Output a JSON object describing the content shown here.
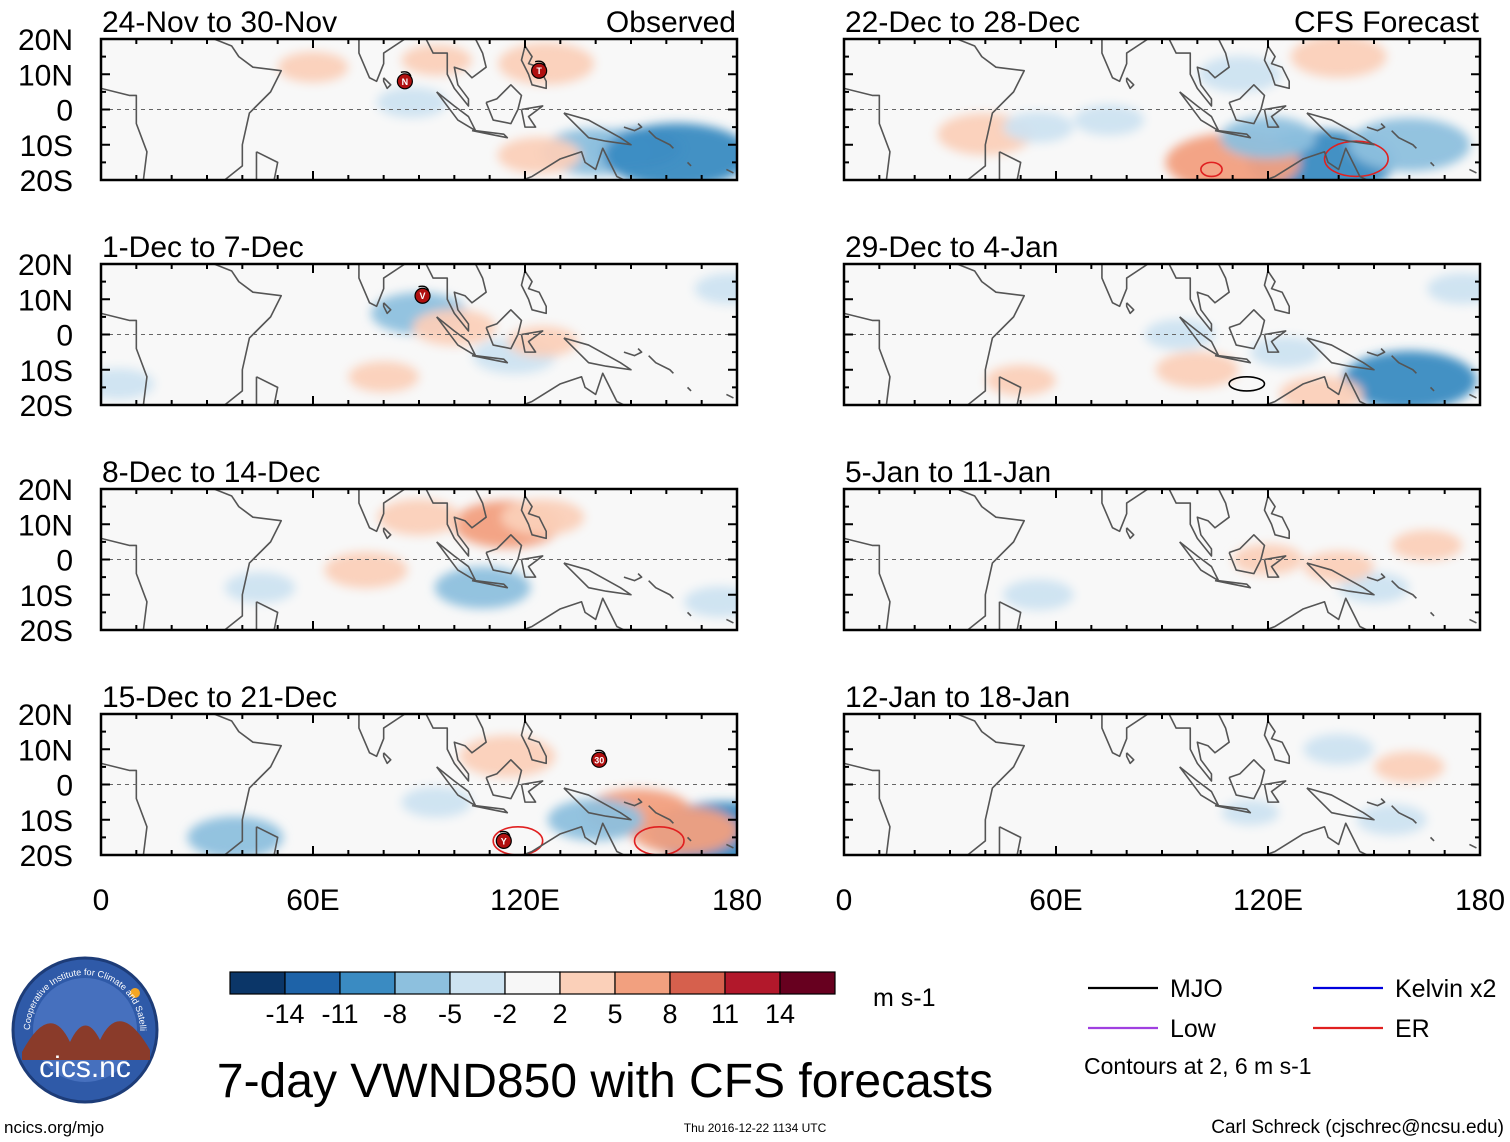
{
  "chart_data": {
    "type": "heatmap",
    "title": "7-day VWND850 with CFS forecasts",
    "units": "m s-1",
    "column_headers": [
      "Observed",
      "CFS Forecast"
    ],
    "panels": [
      {
        "period": "24-Nov to 30-Nov",
        "source": "Observed",
        "storms": [
          {
            "lon": 86,
            "lat": 8,
            "label": "N"
          },
          {
            "lon": 124,
            "lat": 11,
            "label": "T"
          }
        ],
        "contours": [],
        "anomalies": [
          {
            "lon": 140,
            "lat": -12,
            "v": -6
          },
          {
            "lon": 151,
            "lat": -11,
            "v": -5
          },
          {
            "lon": 163,
            "lat": -13,
            "v": -9
          },
          {
            "lon": 126,
            "lat": 13,
            "v": 5
          },
          {
            "lon": 124,
            "lat": -13,
            "v": 4
          },
          {
            "lon": 88,
            "lat": 2,
            "v": -3
          },
          {
            "lon": 60,
            "lat": 12,
            "v": 3
          },
          {
            "lon": 95,
            "lat": 14,
            "v": 3
          }
        ]
      },
      {
        "period": "1-Dec to 7-Dec",
        "source": "Observed",
        "storms": [
          {
            "lon": 91,
            "lat": 11,
            "label": "V"
          }
        ],
        "contours": [],
        "anomalies": [
          {
            "lon": 90,
            "lat": 6,
            "v": -5
          },
          {
            "lon": 100,
            "lat": 2,
            "v": 4
          },
          {
            "lon": 117,
            "lat": -6,
            "v": -4
          },
          {
            "lon": 125,
            "lat": -2,
            "v": 3
          },
          {
            "lon": 178,
            "lat": 13,
            "v": -3
          },
          {
            "lon": 5,
            "lat": -14,
            "v": -3
          },
          {
            "lon": 80,
            "lat": -12,
            "v": 3
          }
        ]
      },
      {
        "period": "8-Dec to 14-Dec",
        "source": "Observed",
        "storms": [],
        "contours": [],
        "anomalies": [
          {
            "lon": 115,
            "lat": 10,
            "v": 6
          },
          {
            "lon": 125,
            "lat": 12,
            "v": 4
          },
          {
            "lon": 75,
            "lat": -3,
            "v": 4
          },
          {
            "lon": 108,
            "lat": -8,
            "v": -5
          },
          {
            "lon": 90,
            "lat": 12,
            "v": 4
          },
          {
            "lon": 175,
            "lat": -12,
            "v": -3
          },
          {
            "lon": 45,
            "lat": -8,
            "v": -3
          }
        ]
      },
      {
        "period": "15-Dec to 21-Dec",
        "source": "Observed",
        "storms": [
          {
            "lon": 114,
            "lat": -16,
            "label": "Y"
          },
          {
            "lon": 141,
            "lat": 7,
            "label": "30"
          }
        ],
        "contours": [
          {
            "type": "ER",
            "lon": 118,
            "lat": -16,
            "rx": 7,
            "ry": 4
          },
          {
            "type": "ER",
            "lon": 158,
            "lat": -16,
            "rx": 7,
            "ry": 4
          }
        ],
        "anomalies": [
          {
            "lon": 115,
            "lat": 8,
            "v": 5
          },
          {
            "lon": 152,
            "lat": -8,
            "v": 6
          },
          {
            "lon": 176,
            "lat": -14,
            "v": -9
          },
          {
            "lon": 165,
            "lat": -13,
            "v": 6
          },
          {
            "lon": 140,
            "lat": -10,
            "v": -5
          },
          {
            "lon": 38,
            "lat": -15,
            "v": -5
          },
          {
            "lon": 95,
            "lat": -5,
            "v": -3
          }
        ]
      },
      {
        "period": "22-Dec to 28-Dec",
        "source": "CFS Forecast",
        "storms": [],
        "contours": [
          {
            "type": "ER",
            "lon": 145,
            "lat": -14,
            "rx": 9,
            "ry": 5
          },
          {
            "type": "ER",
            "lon": 104,
            "lat": -17,
            "rx": 3,
            "ry": 2
          }
        ],
        "anomalies": [
          {
            "lon": 135,
            "lat": -15,
            "v": -9
          },
          {
            "lon": 110,
            "lat": -15,
            "v": 8
          },
          {
            "lon": 120,
            "lat": -8,
            "v": -5
          },
          {
            "lon": 160,
            "lat": -10,
            "v": -7
          },
          {
            "lon": 40,
            "lat": -7,
            "v": 5
          },
          {
            "lon": 140,
            "lat": 15,
            "v": 5
          },
          {
            "lon": 112,
            "lat": 10,
            "v": -4
          },
          {
            "lon": 55,
            "lat": -5,
            "v": -3
          },
          {
            "lon": 75,
            "lat": -3,
            "v": -3
          }
        ]
      },
      {
        "period": "29-Dec to 4-Jan",
        "source": "CFS Forecast",
        "storms": [],
        "contours": [
          {
            "type": "MJO",
            "lon": 114,
            "lat": -14,
            "rx": 5,
            "ry": 2
          }
        ],
        "anomalies": [
          {
            "lon": 100,
            "lat": -10,
            "v": 4
          },
          {
            "lon": 160,
            "lat": -13,
            "v": -8
          },
          {
            "lon": 95,
            "lat": 0,
            "v": -3
          },
          {
            "lon": 135,
            "lat": -17,
            "v": 4
          },
          {
            "lon": 175,
            "lat": 13,
            "v": -3
          },
          {
            "lon": 125,
            "lat": -5,
            "v": -3
          },
          {
            "lon": 50,
            "lat": -13,
            "v": 3
          }
        ]
      },
      {
        "period": "5-Jan to 11-Jan",
        "source": "CFS Forecast",
        "storms": [],
        "contours": [],
        "anomalies": [
          {
            "lon": 120,
            "lat": 0,
            "v": 3
          },
          {
            "lon": 150,
            "lat": -8,
            "v": -3
          },
          {
            "lon": 165,
            "lat": 4,
            "v": 3
          },
          {
            "lon": 55,
            "lat": -10,
            "v": -3
          },
          {
            "lon": 140,
            "lat": -2,
            "v": 3
          }
        ]
      },
      {
        "period": "12-Jan to 18-Jan",
        "source": "CFS Forecast",
        "storms": [],
        "contours": [],
        "anomalies": [
          {
            "lon": 140,
            "lat": 10,
            "v": -3
          },
          {
            "lon": 155,
            "lat": -10,
            "v": -3
          },
          {
            "lon": 160,
            "lat": 5,
            "v": 3
          },
          {
            "lon": 115,
            "lat": -8,
            "v": -2
          }
        ]
      }
    ],
    "x_ticks": [
      {
        "lon": 0,
        "label": "0"
      },
      {
        "lon": 60,
        "label": "60E"
      },
      {
        "lon": 120,
        "label": "120E"
      },
      {
        "lon": 180,
        "label": "180"
      }
    ],
    "y_ticks": [
      {
        "lat": 20,
        "label": "20N"
      },
      {
        "lat": 10,
        "label": "10N"
      },
      {
        "lat": 0,
        "label": "0"
      },
      {
        "lat": -10,
        "label": "10S"
      },
      {
        "lat": -20,
        "label": "20S"
      }
    ],
    "xlim": [
      0,
      180
    ],
    "ylim": [
      -20,
      20
    ],
    "colorbar": {
      "bins": [
        {
          "color": "#0b3668"
        },
        {
          "color": "#1e63a8"
        },
        {
          "color": "#3a8bc2"
        },
        {
          "color": "#8dc0de"
        },
        {
          "color": "#cde3f1"
        },
        {
          "color": "#f7f7f7"
        },
        {
          "color": "#fbd0b9"
        },
        {
          "color": "#f2a07f"
        },
        {
          "color": "#d6604d"
        },
        {
          "color": "#b2182b"
        },
        {
          "color": "#67001f"
        }
      ],
      "tick_labels": [
        "-14",
        "-11",
        "-8",
        "-5",
        "-2",
        "2",
        "5",
        "8",
        "11",
        "14"
      ]
    },
    "legend": [
      {
        "name": "MJO",
        "color": "#000000"
      },
      {
        "name": "Kelvin x2",
        "color": "#0000dd"
      },
      {
        "name": "Low",
        "color": "#a040e0"
      },
      {
        "name": "ER",
        "color": "#e02020"
      }
    ],
    "contour_note": "Contours at 2, 6 m s-1"
  },
  "logo": {
    "name": "cicsnc-logo",
    "wordmark": "cics.nc",
    "ring_text": "Cooperative Institute for Climate and Satellites"
  },
  "footer": {
    "url": "ncics.org/mjo",
    "timestamp": "Thu 2016-12-22 1134 UTC",
    "author": "Carl Schreck (cjschrec@ncsu.edu)"
  }
}
